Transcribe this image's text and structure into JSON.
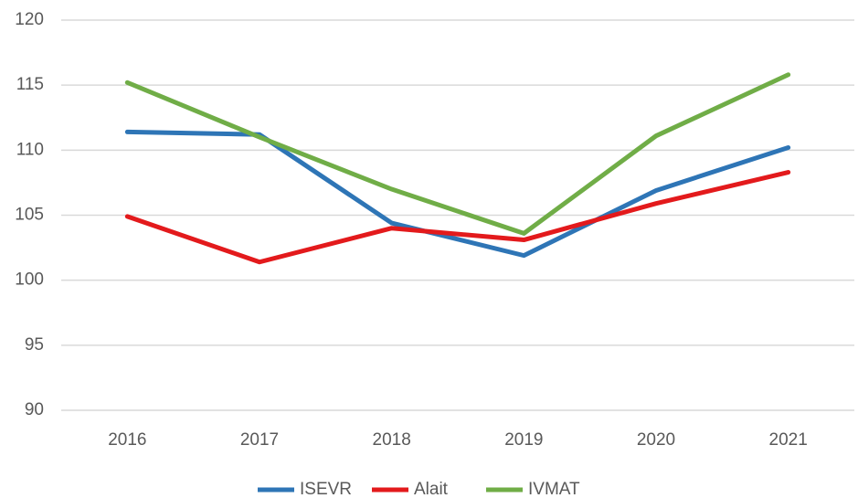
{
  "chart_data": {
    "type": "line",
    "categories": [
      "2016",
      "2017",
      "2018",
      "2019",
      "2020",
      "2021"
    ],
    "series": [
      {
        "name": "ISEVR",
        "color": "#2e75b6",
        "values": [
          111.4,
          111.2,
          104.4,
          101.9,
          106.9,
          110.2
        ]
      },
      {
        "name": "Alait",
        "color": "#e31a1c",
        "values": [
          104.9,
          101.4,
          104.0,
          103.1,
          105.9,
          108.3
        ]
      },
      {
        "name": "IVMAT",
        "color": "#70ad47",
        "values": [
          115.2,
          111.0,
          107.0,
          103.6,
          111.1,
          115.8
        ]
      }
    ],
    "ylim": [
      90,
      120
    ],
    "yticks": [
      90,
      95,
      100,
      105,
      110,
      115,
      120
    ],
    "grid": true,
    "legend": "bottom"
  }
}
